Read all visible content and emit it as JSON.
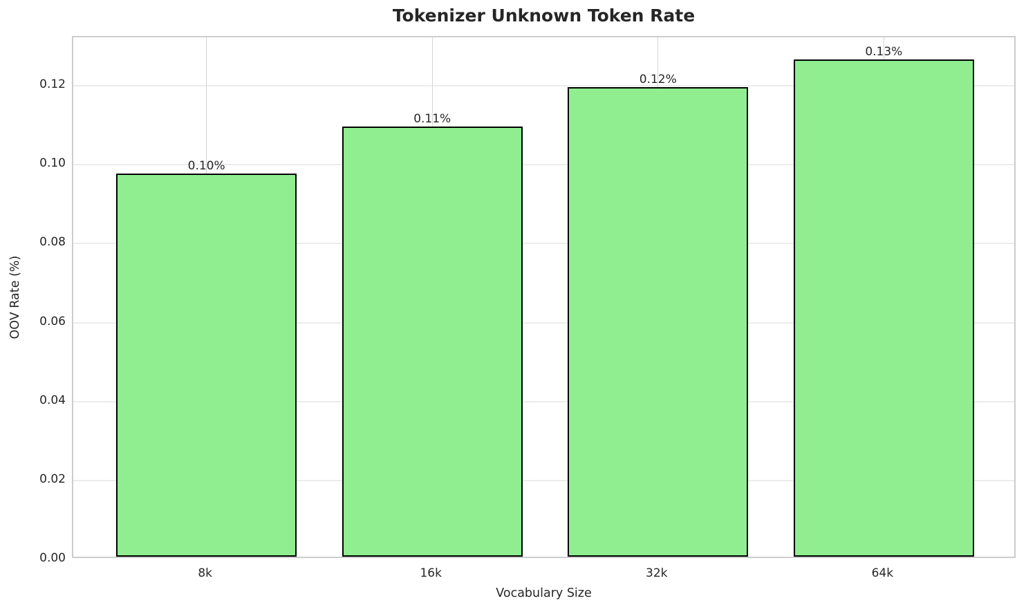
{
  "chart_data": {
    "type": "bar",
    "title": "Tokenizer Unknown Token Rate",
    "xlabel": "Vocabulary Size",
    "ylabel": "OOV Rate (%)",
    "categories": [
      "8k",
      "16k",
      "32k",
      "64k"
    ],
    "values": [
      0.097,
      0.109,
      0.119,
      0.126
    ],
    "bar_labels": [
      "0.10%",
      "0.11%",
      "0.12%",
      "0.13%"
    ],
    "ytick_values": [
      0.0,
      0.02,
      0.04,
      0.06,
      0.08,
      0.1,
      0.12
    ],
    "ytick_labels": [
      "0.00",
      "0.02",
      "0.04",
      "0.06",
      "0.08",
      "0.10",
      "0.12"
    ],
    "ylim": [
      0,
      0.1323
    ],
    "xlim": [
      -0.59,
      3.59
    ],
    "bar_width_units": 0.8,
    "grid": true,
    "legend_position": "none",
    "colors": {
      "bar_fill": "#90EE90",
      "bar_edge": "#000000",
      "h_grid": "#ececec",
      "v_grid": "#d4d4d4",
      "axes_edge": "#cccccc",
      "text": "#262626"
    }
  }
}
